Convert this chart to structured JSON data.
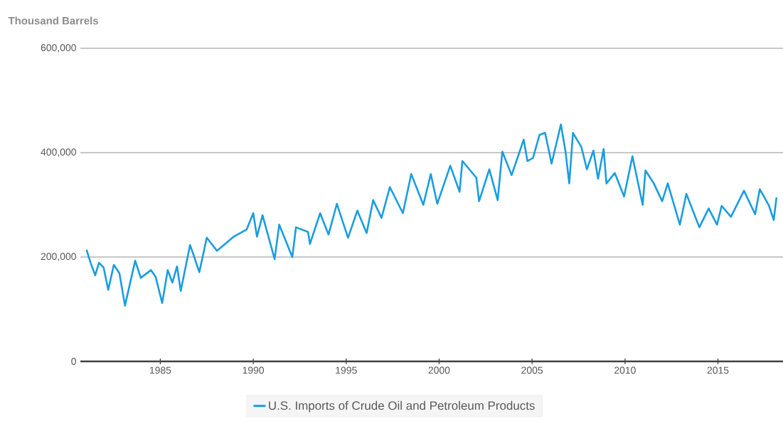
{
  "chart_data": {
    "type": "line",
    "ylabel": "Thousand Barrels",
    "x": [
      1981.03,
      1981.25,
      1981.5,
      1981.7,
      1981.95,
      1982.2,
      1982.5,
      1982.8,
      1983.1,
      1983.65,
      1983.95,
      1984.5,
      1984.75,
      1985.1,
      1985.4,
      1985.65,
      1985.9,
      1986.1,
      1986.6,
      1986.8,
      1987.1,
      1987.5,
      1988.05,
      1988.95,
      1989.65,
      1990.0,
      1990.2,
      1990.5,
      1991.15,
      1991.4,
      1992.1,
      1992.3,
      1992.95,
      1993.05,
      1993.6,
      1994.05,
      1994.5,
      1995.1,
      1995.6,
      1996.1,
      1996.45,
      1996.9,
      1997.35,
      1998.05,
      1998.5,
      1999.15,
      1999.55,
      1999.9,
      2000.6,
      2001.1,
      2001.25,
      2002.0,
      2002.15,
      2002.7,
      2003.15,
      2003.4,
      2003.9,
      2004.55,
      2004.75,
      2005.05,
      2005.4,
      2005.7,
      2006.05,
      2006.55,
      2006.8,
      2007.0,
      2007.2,
      2007.65,
      2007.95,
      2008.3,
      2008.55,
      2008.85,
      2009.0,
      2009.45,
      2009.95,
      2010.4,
      2010.95,
      2011.1,
      2011.55,
      2012.0,
      2012.3,
      2012.95,
      2013.3,
      2014.0,
      2014.5,
      2014.95,
      2015.2,
      2015.7,
      2016.4,
      2017.0,
      2017.25,
      2017.75,
      2018.0,
      2018.15
    ],
    "series": [
      {
        "name": "U.S. Imports of Crude Oil and Petroleum Products",
        "color": "#1a9de0",
        "values": [
          214000,
          189000,
          165000,
          189000,
          180000,
          137000,
          185000,
          169000,
          107000,
          193000,
          160000,
          175000,
          162000,
          112000,
          175000,
          151000,
          182000,
          135000,
          223000,
          203000,
          171000,
          237000,
          212000,
          239000,
          253000,
          284000,
          239000,
          280000,
          196000,
          262000,
          200000,
          257000,
          248000,
          225000,
          284000,
          243000,
          302000,
          237000,
          289000,
          246000,
          309000,
          275000,
          334000,
          284000,
          359000,
          300000,
          359000,
          302000,
          375000,
          325000,
          384000,
          352000,
          307000,
          368000,
          309000,
          402000,
          357000,
          425000,
          384000,
          390000,
          434000,
          438000,
          379000,
          454000,
          402000,
          341000,
          438000,
          411000,
          368000,
          404000,
          350000,
          407000,
          341000,
          361000,
          316000,
          393000,
          300000,
          366000,
          341000,
          307000,
          341000,
          262000,
          321000,
          257000,
          293000,
          262000,
          298000,
          277000,
          327000,
          282000,
          330000,
          298000,
          271000,
          314000
        ]
      }
    ],
    "xlim": [
      1980.7,
      2018.5
    ],
    "ylim": [
      0,
      600000
    ],
    "xticks": [
      1985,
      1990,
      1995,
      2000,
      2005,
      2010,
      2015
    ],
    "yticks": [
      0,
      {
        "value": 200000,
        "label": "200,000"
      },
      {
        "value": 400000,
        "label": "400,000"
      },
      {
        "value": 600000,
        "label": "600,000"
      }
    ],
    "grid": "y",
    "legend": "bottom",
    "marker": "none",
    "line_style": "solid"
  }
}
